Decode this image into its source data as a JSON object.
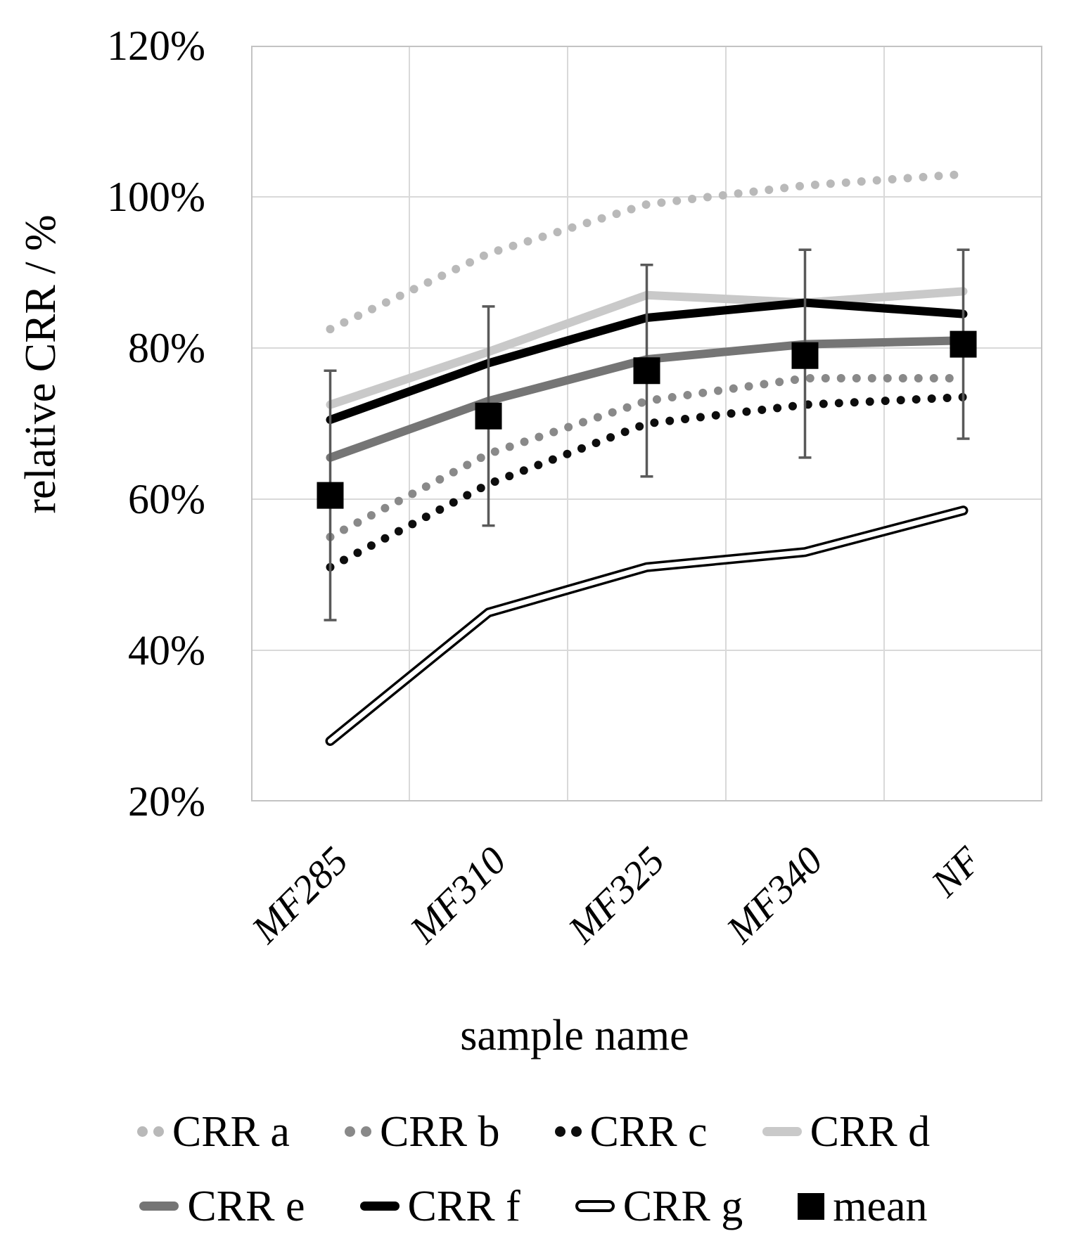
{
  "chart_data": {
    "type": "line",
    "title": "",
    "xlabel": "sample name",
    "ylabel": "relative CRR / %",
    "categories": [
      "MF285",
      "MF310",
      "MF325",
      "MF340",
      "NF"
    ],
    "y_ticks": [
      "120%",
      "100%",
      "80%",
      "60%",
      "40%",
      "20%"
    ],
    "y_tick_values": [
      120,
      100,
      80,
      60,
      40,
      20
    ],
    "ylim": [
      20,
      120
    ],
    "grid": true,
    "legend_position": "bottom",
    "colors": {
      "gridline": "#d9d9d9",
      "plot_border": "#c3c3c3",
      "error_bar": "#595959"
    },
    "series": [
      {
        "name": "CRR a",
        "style": "dotted",
        "color": "#b9b9b9",
        "values": [
          82.5,
          92.5,
          99,
          101.5,
          103
        ]
      },
      {
        "name": "CRR b",
        "style": "dotted",
        "color": "#898989",
        "values": [
          55,
          66,
          73,
          76,
          76
        ]
      },
      {
        "name": "CRR c",
        "style": "dotted",
        "color": "#0d0d0d",
        "values": [
          51,
          62,
          70,
          72.5,
          73.5
        ]
      },
      {
        "name": "CRR d",
        "style": "solid",
        "color": "#c9c9c9",
        "values": [
          72.5,
          79.5,
          87,
          86,
          87.5
        ]
      },
      {
        "name": "CRR e",
        "style": "solid",
        "color": "#757575",
        "values": [
          65.5,
          73,
          78.5,
          80.5,
          81
        ]
      },
      {
        "name": "CRR f",
        "style": "solid",
        "color": "#000000",
        "values": [
          70.5,
          78,
          84,
          86,
          84.5
        ]
      },
      {
        "name": "CRR g",
        "style": "double",
        "color": "#000000",
        "values": [
          28,
          45,
          51,
          53,
          58.5
        ]
      },
      {
        "name": "mean",
        "style": "square-marker",
        "color": "#000000",
        "values": [
          60.5,
          71,
          77,
          79,
          80.5
        ],
        "error_upper": [
          77,
          85.5,
          91,
          93,
          93
        ],
        "error_lower": [
          44,
          56.5,
          63,
          65.5,
          68
        ]
      }
    ]
  },
  "layout_labels": {
    "x_axis_title": "sample name",
    "y_axis_title": "relative CRR / %"
  }
}
